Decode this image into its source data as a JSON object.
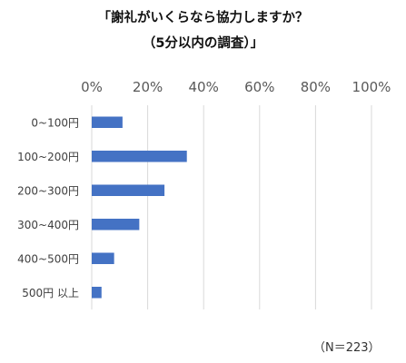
{
  "chart_data": {
    "type": "bar",
    "orientation": "horizontal",
    "title": [
      "「謝礼がいくらなら協力しますか？",
      "（5分以内の調査）」"
    ],
    "categories": [
      "0~100円",
      "100~200円",
      "200~300円",
      "300~400円",
      "400~500円",
      "500円 以上"
    ],
    "values": [
      11,
      34,
      26,
      17,
      8,
      3.5
    ],
    "xlim": [
      0,
      100
    ],
    "xticks": [
      "0%",
      "20%",
      "40%",
      "60%",
      "80%",
      "100%"
    ],
    "xtick_values": [
      0,
      20,
      40,
      60,
      80,
      100
    ],
    "grid": true,
    "bar_color": "#4472c4",
    "grid_color": "#d9d9d9",
    "note": "（N＝223）"
  }
}
